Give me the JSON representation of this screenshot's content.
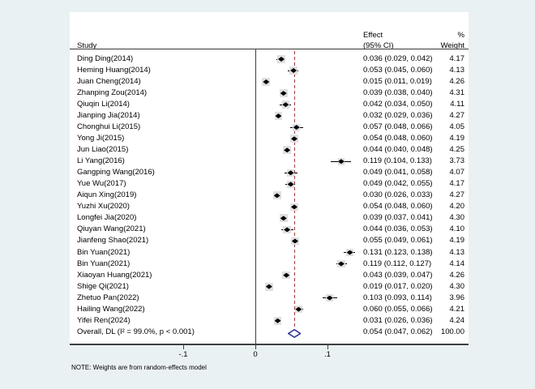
{
  "header": {
    "study": "Study",
    "effect_line1": "Effect",
    "effect_line2": "(95% CI)",
    "weight_line1": "%",
    "weight_line2": "Weight"
  },
  "note": "NOTE: Weights are from random-effects model",
  "colors": {
    "background": "#eaf1f3",
    "panel": "#ffffff",
    "axis": "#3f3f3f",
    "null_line": "#3f3f3f",
    "overall_dash_line": "#a33a3a",
    "marker": "#000000",
    "weight_box": "#e0e0e0",
    "diamond_outline": "#262f8c",
    "diamond_fill": "#ffffff"
  },
  "chart_data": {
    "type": "forest",
    "x_axis": {
      "ticks": [
        -0.1,
        0,
        0.1
      ],
      "tick_labels": [
        "-.1",
        "0",
        ".1"
      ],
      "null_line_x": 0,
      "overall_dashed_line_x": 0.054
    },
    "legend_position": "none",
    "grid": false,
    "studies": [
      {
        "name": "Ding Ding(2014)",
        "effect": 0.036,
        "ci_low": 0.029,
        "ci_high": 0.042,
        "weight": 4.17,
        "effect_label": "0.036 (0.029, 0.042)",
        "weight_label": "4.17"
      },
      {
        "name": "Heming Huang(2014)",
        "effect": 0.053,
        "ci_low": 0.045,
        "ci_high": 0.06,
        "weight": 4.13,
        "effect_label": "0.053 (0.045, 0.060)",
        "weight_label": "4.13"
      },
      {
        "name": "Juan Cheng(2014)",
        "effect": 0.015,
        "ci_low": 0.011,
        "ci_high": 0.019,
        "weight": 4.26,
        "effect_label": "0.015 (0.011, 0.019)",
        "weight_label": "4.26"
      },
      {
        "name": "Zhanping Zou(2014)",
        "effect": 0.039,
        "ci_low": 0.038,
        "ci_high": 0.04,
        "weight": 4.31,
        "effect_label": "0.039 (0.038, 0.040)",
        "weight_label": "4.31"
      },
      {
        "name": "Qiuqin Li(2014)",
        "effect": 0.042,
        "ci_low": 0.034,
        "ci_high": 0.05,
        "weight": 4.11,
        "effect_label": "0.042 (0.034, 0.050)",
        "weight_label": "4.11"
      },
      {
        "name": "Jianping Jia(2014)",
        "effect": 0.032,
        "ci_low": 0.029,
        "ci_high": 0.036,
        "weight": 4.27,
        "effect_label": "0.032 (0.029, 0.036)",
        "weight_label": "4.27"
      },
      {
        "name": "Chonghui Li(2015)",
        "effect": 0.057,
        "ci_low": 0.048,
        "ci_high": 0.066,
        "weight": 4.05,
        "effect_label": "0.057 (0.048, 0.066)",
        "weight_label": "4.05"
      },
      {
        "name": "Yong Ji(2015)",
        "effect": 0.054,
        "ci_low": 0.048,
        "ci_high": 0.06,
        "weight": 4.19,
        "effect_label": "0.054 (0.048, 0.060)",
        "weight_label": "4.19"
      },
      {
        "name": "Jun Liao(2015)",
        "effect": 0.044,
        "ci_low": 0.04,
        "ci_high": 0.048,
        "weight": 4.25,
        "effect_label": "0.044 (0.040, 0.048)",
        "weight_label": "4.25"
      },
      {
        "name": "Li Yang(2016)",
        "effect": 0.119,
        "ci_low": 0.104,
        "ci_high": 0.133,
        "weight": 3.73,
        "effect_label": "0.119 (0.104, 0.133)",
        "weight_label": "3.73"
      },
      {
        "name": "Gangping Wang(2016)",
        "effect": 0.049,
        "ci_low": 0.041,
        "ci_high": 0.058,
        "weight": 4.07,
        "effect_label": "0.049 (0.041, 0.058)",
        "weight_label": "4.07"
      },
      {
        "name": "Yue Wu(2017)",
        "effect": 0.049,
        "ci_low": 0.042,
        "ci_high": 0.055,
        "weight": 4.17,
        "effect_label": "0.049 (0.042, 0.055)",
        "weight_label": "4.17"
      },
      {
        "name": "Aiqun Xing(2019)",
        "effect": 0.03,
        "ci_low": 0.026,
        "ci_high": 0.033,
        "weight": 4.27,
        "effect_label": "0.030 (0.026, 0.033)",
        "weight_label": "4.27"
      },
      {
        "name": "Yuzhi Xu(2020)",
        "effect": 0.054,
        "ci_low": 0.048,
        "ci_high": 0.06,
        "weight": 4.2,
        "effect_label": "0.054 (0.048, 0.060)",
        "weight_label": "4.20"
      },
      {
        "name": "Longfei Jia(2020)",
        "effect": 0.039,
        "ci_low": 0.037,
        "ci_high": 0.041,
        "weight": 4.3,
        "effect_label": "0.039 (0.037, 0.041)",
        "weight_label": "4.30"
      },
      {
        "name": "Qiuyan Wang(2021)",
        "effect": 0.044,
        "ci_low": 0.036,
        "ci_high": 0.053,
        "weight": 4.1,
        "effect_label": "0.044 (0.036, 0.053)",
        "weight_label": "4.10"
      },
      {
        "name": "Jianfeng Shao(2021)",
        "effect": 0.055,
        "ci_low": 0.049,
        "ci_high": 0.061,
        "weight": 4.19,
        "effect_label": "0.055 (0.049, 0.061)",
        "weight_label": "4.19"
      },
      {
        "name": "Bin Yuan(2021)",
        "effect": 0.131,
        "ci_low": 0.123,
        "ci_high": 0.138,
        "weight": 4.13,
        "effect_label": "0.131 (0.123, 0.138)",
        "weight_label": "4.13"
      },
      {
        "name": "Bin Yuan(2021)",
        "effect": 0.119,
        "ci_low": 0.112,
        "ci_high": 0.127,
        "weight": 4.14,
        "effect_label": "0.119 (0.112, 0.127)",
        "weight_label": "4.14"
      },
      {
        "name": "Xiaoyan Huang(2021)",
        "effect": 0.043,
        "ci_low": 0.039,
        "ci_high": 0.047,
        "weight": 4.26,
        "effect_label": "0.043 (0.039, 0.047)",
        "weight_label": "4.26"
      },
      {
        "name": "Shige Qi(2021)",
        "effect": 0.019,
        "ci_low": 0.017,
        "ci_high": 0.02,
        "weight": 4.3,
        "effect_label": "0.019 (0.017, 0.020)",
        "weight_label": "4.30"
      },
      {
        "name": "Zhetuo Pan(2022)",
        "effect": 0.103,
        "ci_low": 0.093,
        "ci_high": 0.114,
        "weight": 3.96,
        "effect_label": "0.103 (0.093, 0.114)",
        "weight_label": "3.96"
      },
      {
        "name": "Hailing Wang(2022)",
        "effect": 0.06,
        "ci_low": 0.055,
        "ci_high": 0.066,
        "weight": 4.21,
        "effect_label": "0.060 (0.055, 0.066)",
        "weight_label": "4.21"
      },
      {
        "name": "Yifei Ren(2024)",
        "effect": 0.031,
        "ci_low": 0.026,
        "ci_high": 0.036,
        "weight": 4.24,
        "effect_label": "0.031 (0.026, 0.036)",
        "weight_label": "4.24"
      }
    ],
    "overall": {
      "name": "Overall, DL (I² = 99.0%, p < 0.001)",
      "effect": 0.054,
      "ci_low": 0.047,
      "ci_high": 0.062,
      "weight": 100.0,
      "effect_label": "0.054 (0.047, 0.062)",
      "weight_label": "100.00"
    }
  }
}
